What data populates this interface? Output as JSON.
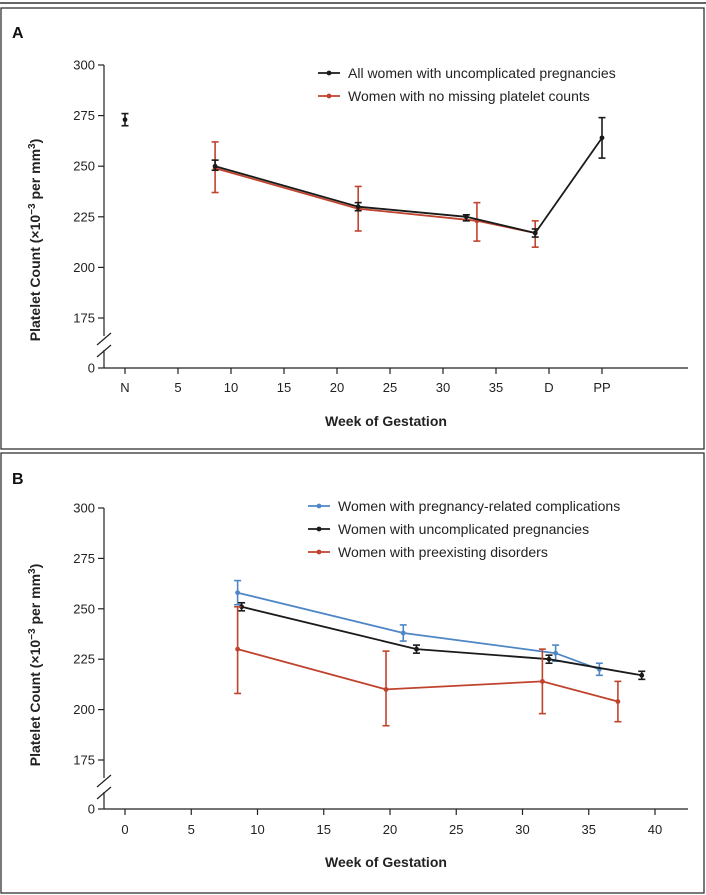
{
  "chart_data": [
    {
      "type": "line",
      "panel_label": "A",
      "xlabel": "Week of Gestation",
      "ylabel": "Platelet Count (×10",
      "ylabel_sup": "−3",
      "ylabel_mid": " per mm",
      "ylabel_sup2": "3",
      "ylabel_end": ")",
      "xlim": [
        -4,
        44
      ],
      "ylim": [
        150,
        300
      ],
      "y_ticks": [
        175,
        200,
        225,
        250,
        275,
        300
      ],
      "y_zero_label": "0",
      "x_ticks": [
        {
          "x": 0,
          "label": "N"
        },
        {
          "x": 5,
          "label": "5"
        },
        {
          "x": 10,
          "label": "10"
        },
        {
          "x": 15,
          "label": "15"
        },
        {
          "x": 20,
          "label": "20"
        },
        {
          "x": 25,
          "label": "25"
        },
        {
          "x": 30,
          "label": "30"
        },
        {
          "x": 35,
          "label": "35"
        },
        {
          "x": 40,
          "label": "D"
        },
        {
          "x": 45,
          "label": "PP"
        }
      ],
      "legend_position": "top-right",
      "standalone_points": [
        {
          "x": 0,
          "y": 273,
          "lo": 270,
          "hi": 276,
          "color": "#1a1a1a"
        }
      ],
      "series": [
        {
          "name": "All women with uncomplicated pregnancies",
          "color": "#1a1a1a",
          "points": [
            {
              "x": 8.5,
              "y": 250,
              "lo": 248,
              "hi": 253
            },
            {
              "x": 22,
              "y": 230,
              "lo": 228,
              "hi": 232
            },
            {
              "x": 32.2,
              "y": 225,
              "lo": 223,
              "hi": 226
            },
            {
              "x": 38.7,
              "y": 217,
              "lo": 215,
              "hi": 219
            },
            {
              "x": 45,
              "y": 264,
              "lo": 254,
              "hi": 274
            }
          ]
        },
        {
          "name": "Women with no missing platelet counts",
          "color": "#c0432e",
          "points": [
            {
              "x": 8.5,
              "y": 249,
              "lo": 237,
              "hi": 262
            },
            {
              "x": 22,
              "y": 229,
              "lo": 218,
              "hi": 240
            },
            {
              "x": 33.2,
              "y": 223,
              "lo": 213,
              "hi": 232
            },
            {
              "x": 38.7,
              "y": 217,
              "lo": 210,
              "hi": 223
            }
          ]
        }
      ]
    },
    {
      "type": "line",
      "panel_label": "B",
      "xlabel": "Week of Gestation",
      "ylabel": "Platelet Count (×10",
      "ylabel_sup": "−3",
      "ylabel_mid": " per mm",
      "ylabel_sup2": "3",
      "ylabel_end": ")",
      "xlim": [
        -2,
        43
      ],
      "ylim": [
        150,
        300
      ],
      "y_ticks": [
        175,
        200,
        225,
        250,
        275,
        300
      ],
      "y_zero_label": "0",
      "x_ticks": [
        {
          "x": 0,
          "label": "0"
        },
        {
          "x": 5,
          "label": "5"
        },
        {
          "x": 10,
          "label": "10"
        },
        {
          "x": 15,
          "label": "15"
        },
        {
          "x": 20,
          "label": "20"
        },
        {
          "x": 25,
          "label": "25"
        },
        {
          "x": 30,
          "label": "30"
        },
        {
          "x": 35,
          "label": "35"
        },
        {
          "x": 40,
          "label": "40"
        }
      ],
      "legend_position": "top-right",
      "standalone_points": [],
      "series": [
        {
          "name": "Women with pregnancy-related complications",
          "color": "#4f86c6",
          "points": [
            {
              "x": 8.5,
              "y": 258,
              "lo": 252,
              "hi": 264
            },
            {
              "x": 21,
              "y": 238,
              "lo": 234,
              "hi": 242
            },
            {
              "x": 32.5,
              "y": 228,
              "lo": 224,
              "hi": 232
            },
            {
              "x": 35.8,
              "y": 220,
              "lo": 217,
              "hi": 223
            }
          ]
        },
        {
          "name": "Women with uncomplicated pregnancies",
          "color": "#1a1a1a",
          "points": [
            {
              "x": 8.8,
              "y": 251,
              "lo": 249,
              "hi": 253
            },
            {
              "x": 22,
              "y": 230,
              "lo": 228,
              "hi": 232
            },
            {
              "x": 32,
              "y": 225,
              "lo": 223,
              "hi": 227
            },
            {
              "x": 39,
              "y": 217,
              "lo": 215,
              "hi": 219
            }
          ]
        },
        {
          "name": "Women with preexisting disorders",
          "color": "#c0432e",
          "points": [
            {
              "x": 8.5,
              "y": 230,
              "lo": 208,
              "hi": 251
            },
            {
              "x": 19.7,
              "y": 210,
              "lo": 192,
              "hi": 229
            },
            {
              "x": 31.5,
              "y": 214,
              "lo": 198,
              "hi": 230
            },
            {
              "x": 37.2,
              "y": 204,
              "lo": 194,
              "hi": 214
            }
          ]
        }
      ]
    }
  ]
}
